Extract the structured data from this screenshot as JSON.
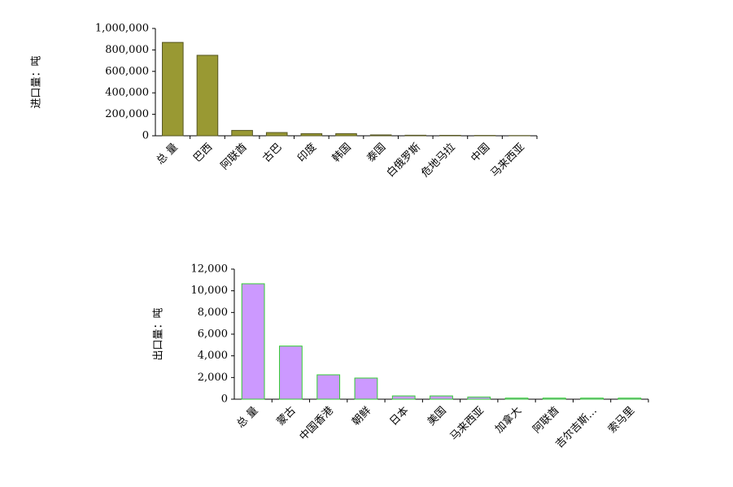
{
  "chart_data": [
    {
      "type": "bar",
      "y_label": "进口量：吨",
      "categories": [
        "总 量",
        "巴西",
        "阿联酋",
        "古巴",
        "印度",
        "韩国",
        "泰国",
        "白俄罗斯",
        "危地马拉",
        "中国",
        "马来西亚"
      ],
      "values": [
        870000,
        750000,
        50000,
        30000,
        20000,
        20000,
        8000,
        5000,
        4000,
        3000,
        2000
      ],
      "color": "#999933",
      "border_color": "#555522",
      "ylim": [
        0,
        1000000
      ],
      "yticks": [
        0,
        {
          "value": 200000,
          "label": "200,000"
        },
        {
          "value": 400000,
          "label": "400,000"
        },
        {
          "value": 600000,
          "label": "600,000"
        },
        {
          "value": 800000,
          "label": "800,000"
        },
        {
          "value": 1000000,
          "label": "1,000,000"
        }
      ]
    },
    {
      "type": "bar",
      "y_label": "出口量：吨",
      "categories": [
        "总 量",
        "蒙古",
        "中国香港",
        "朝鲜",
        "日本",
        "美国",
        "马来西亚",
        "加拿大",
        "阿联酋",
        "吉尔吉斯…",
        "索马里"
      ],
      "values": [
        10650,
        4900,
        2250,
        1950,
        300,
        300,
        200,
        100,
        100,
        100,
        100
      ],
      "color": "#cc99ff",
      "border_color": "#33cc33",
      "ylim": [
        0,
        12000
      ],
      "yticks": [
        0,
        {
          "value": 2000,
          "label": "2,000"
        },
        {
          "value": 4000,
          "label": "4,000"
        },
        {
          "value": 6000,
          "label": "6,000"
        },
        {
          "value": 8000,
          "label": "8,000"
        },
        {
          "value": 10000,
          "label": "10,000"
        },
        {
          "value": 12000,
          "label": "12,000"
        }
      ]
    }
  ]
}
